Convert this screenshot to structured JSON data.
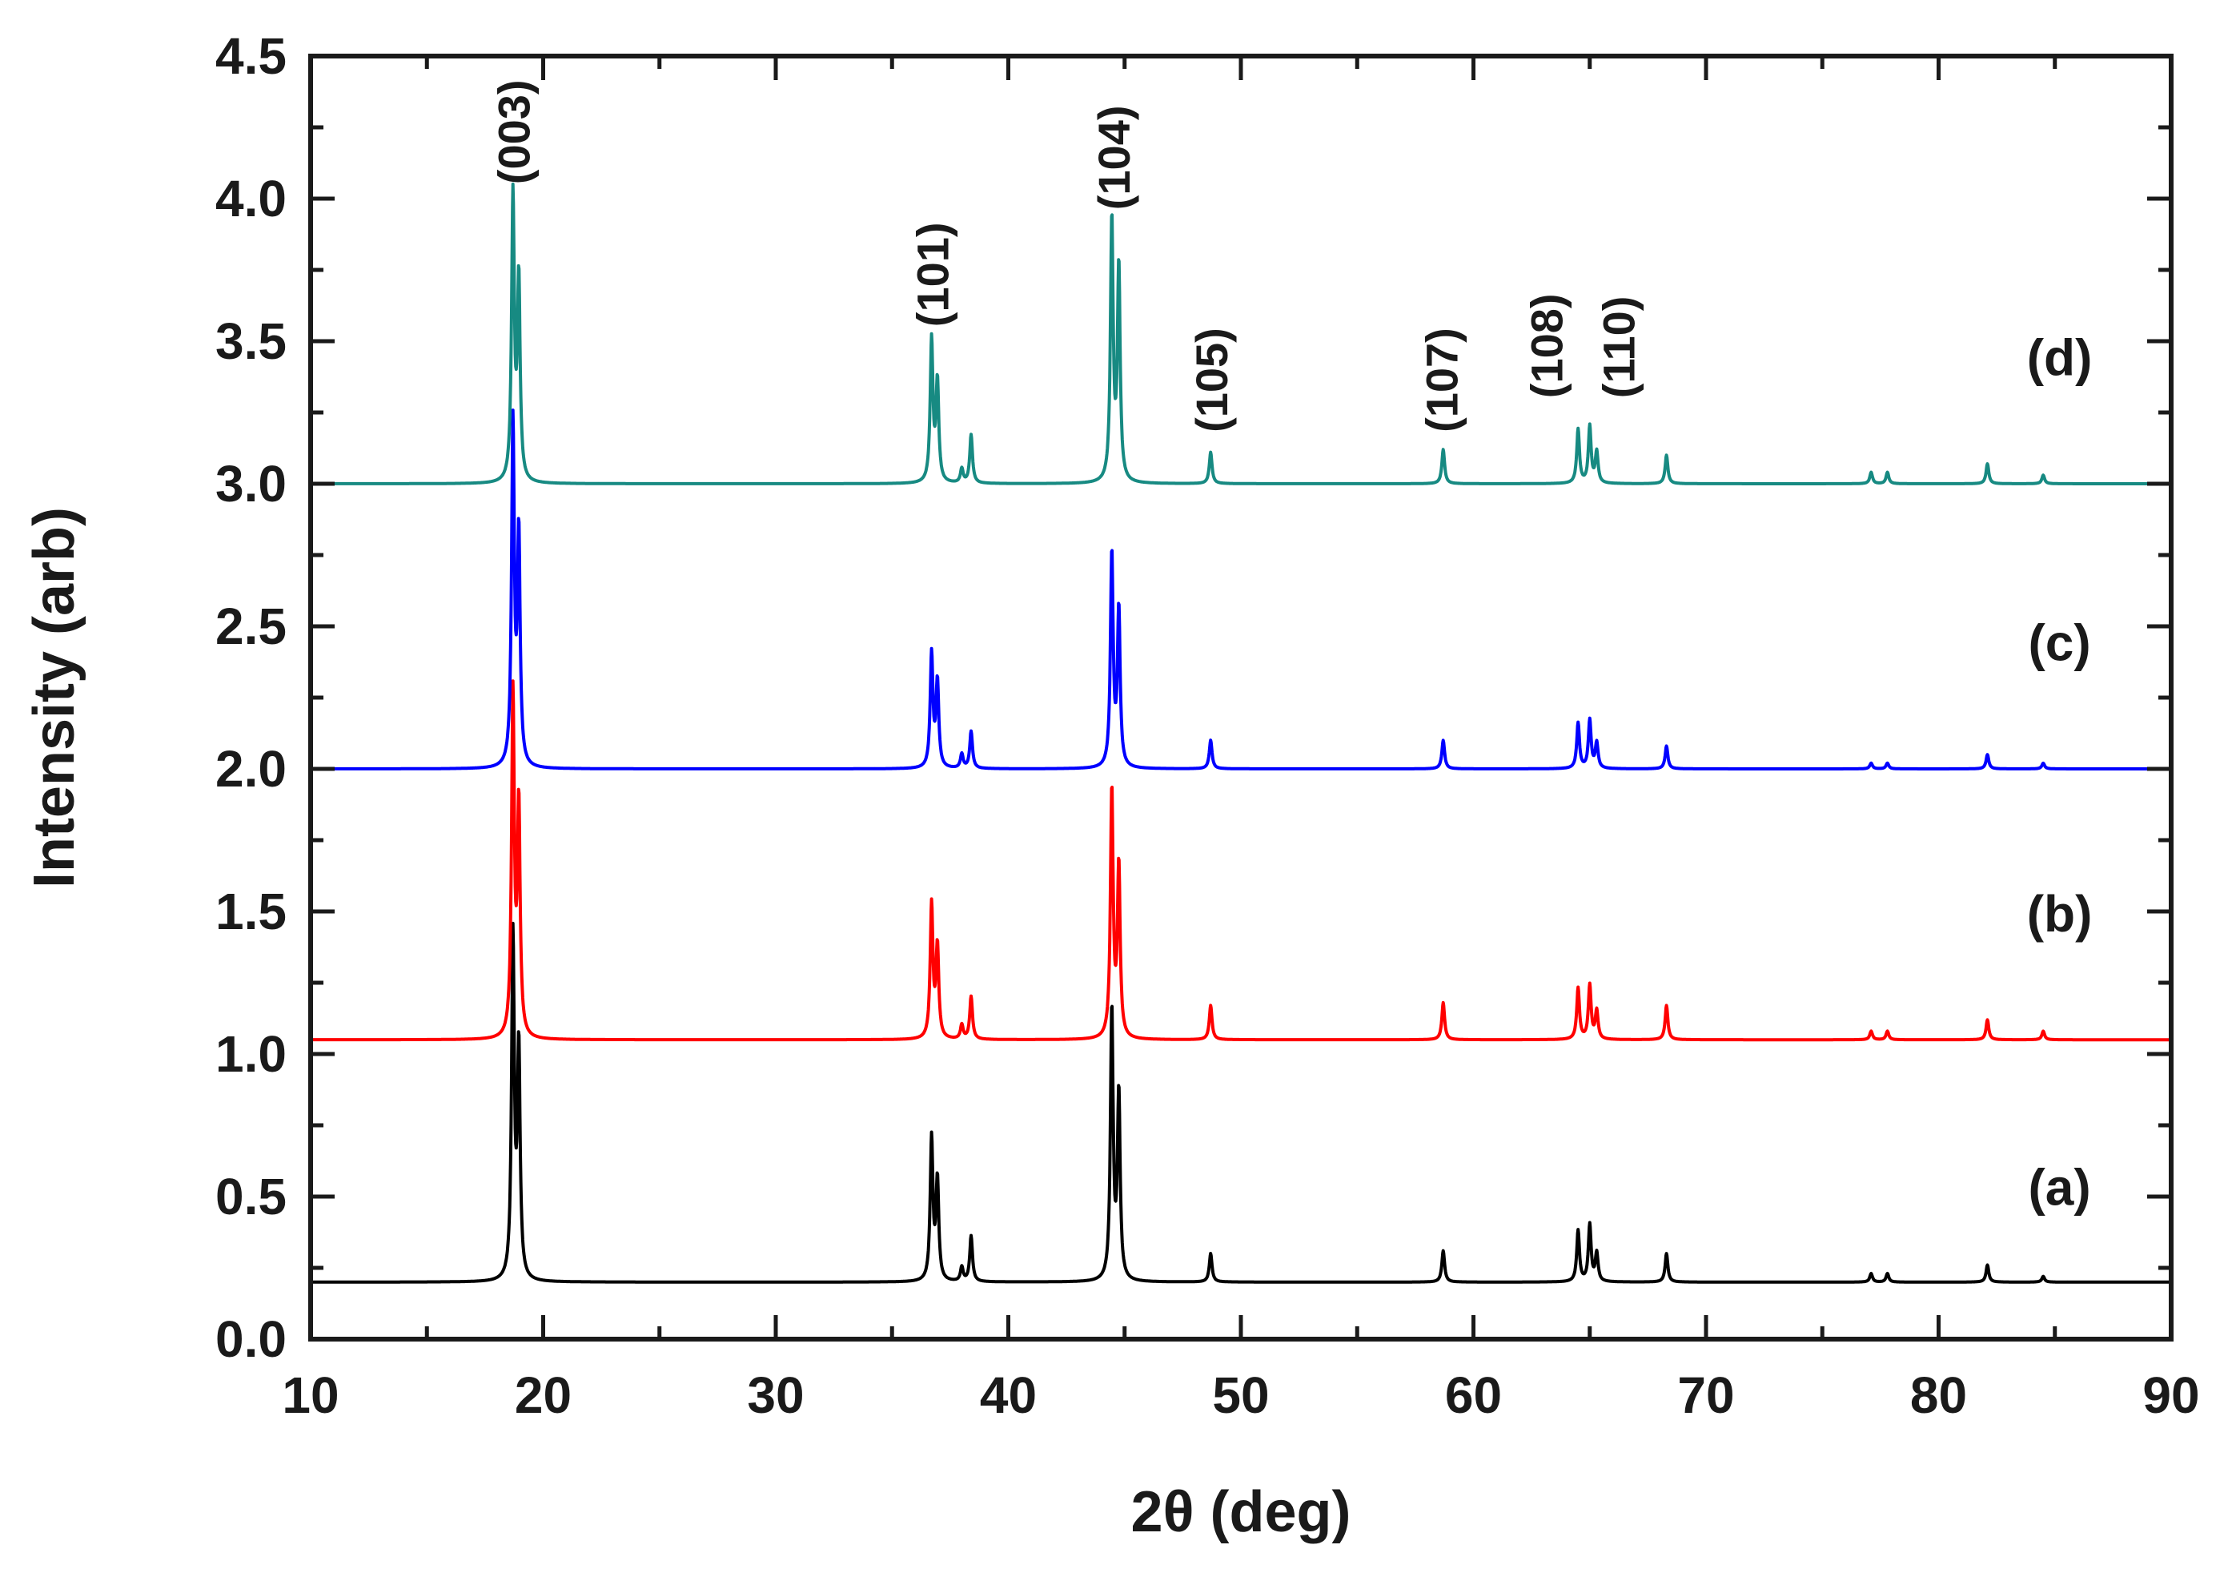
{
  "chart_data": {
    "type": "line",
    "title": "",
    "xlabel": "2θ (deg)",
    "ylabel": "Intensity (arb)",
    "xlim": [
      10,
      90
    ],
    "ylim": [
      0,
      4.5
    ],
    "x_ticks": [
      10,
      20,
      30,
      40,
      50,
      60,
      70,
      80,
      90
    ],
    "x_tick_labels": [
      "10",
      "20",
      "30",
      "40",
      "50",
      "60",
      "70",
      "80",
      "90"
    ],
    "y_ticks": [
      0,
      0.5,
      1,
      1.5,
      2,
      2.5,
      3,
      3.5,
      4,
      4.5
    ],
    "y_tick_labels": [
      "0.0",
      "0.5",
      "1.0",
      "1.5",
      "2.0",
      "2.5",
      "3.0",
      "3.5",
      "4.0",
      "4.5"
    ],
    "grid": false,
    "series": [
      {
        "name": "(a)",
        "color": "#000000",
        "baseline": 0.2,
        "label_y": 0.47,
        "peaks": [
          [
            18.7,
            1.2
          ],
          [
            18.95,
            0.8
          ],
          [
            36.7,
            0.5
          ],
          [
            36.95,
            0.35
          ],
          [
            38.0,
            0.05
          ],
          [
            38.4,
            0.16
          ],
          [
            44.45,
            0.95
          ],
          [
            44.75,
            0.65
          ],
          [
            48.7,
            0.1
          ],
          [
            58.7,
            0.11
          ],
          [
            64.5,
            0.18
          ],
          [
            65.0,
            0.2
          ],
          [
            65.3,
            0.1
          ],
          [
            68.3,
            0.1
          ],
          [
            77.1,
            0.03
          ],
          [
            77.8,
            0.03
          ],
          [
            82.1,
            0.06
          ],
          [
            84.5,
            0.02
          ]
        ]
      },
      {
        "name": "(b)",
        "color": "#ff0000",
        "baseline": 1.05,
        "label_y": 1.43,
        "peaks": [
          [
            18.7,
            1.2
          ],
          [
            18.95,
            0.8
          ],
          [
            36.7,
            0.47
          ],
          [
            36.95,
            0.32
          ],
          [
            38.0,
            0.05
          ],
          [
            38.4,
            0.15
          ],
          [
            44.45,
            0.87
          ],
          [
            44.75,
            0.6
          ],
          [
            48.7,
            0.12
          ],
          [
            58.7,
            0.13
          ],
          [
            64.5,
            0.18
          ],
          [
            65.0,
            0.19
          ],
          [
            65.3,
            0.1
          ],
          [
            68.3,
            0.12
          ],
          [
            77.1,
            0.03
          ],
          [
            77.8,
            0.03
          ],
          [
            82.1,
            0.07
          ],
          [
            84.5,
            0.03
          ]
        ]
      },
      {
        "name": "(c)",
        "color": "#0000ff",
        "baseline": 2.0,
        "label_y": 2.38,
        "peaks": [
          [
            18.7,
            1.2
          ],
          [
            18.95,
            0.8
          ],
          [
            36.7,
            0.4
          ],
          [
            36.95,
            0.3
          ],
          [
            38.0,
            0.05
          ],
          [
            38.4,
            0.13
          ],
          [
            44.45,
            0.75
          ],
          [
            44.75,
            0.55
          ],
          [
            48.7,
            0.1
          ],
          [
            58.7,
            0.1
          ],
          [
            64.5,
            0.16
          ],
          [
            65.0,
            0.17
          ],
          [
            65.3,
            0.09
          ],
          [
            68.3,
            0.08
          ],
          [
            77.1,
            0.02
          ],
          [
            77.8,
            0.02
          ],
          [
            82.1,
            0.05
          ],
          [
            84.5,
            0.02
          ]
        ]
      },
      {
        "name": "(d)",
        "color": "#178a82",
        "baseline": 3.0,
        "label_y": 3.38,
        "peaks": [
          [
            18.7,
            1.0
          ],
          [
            18.95,
            0.7
          ],
          [
            36.7,
            0.5
          ],
          [
            36.95,
            0.35
          ],
          [
            38.0,
            0.05
          ],
          [
            38.4,
            0.17
          ],
          [
            44.45,
            0.92
          ],
          [
            44.75,
            0.75
          ],
          [
            48.7,
            0.11
          ],
          [
            58.7,
            0.12
          ],
          [
            64.5,
            0.19
          ],
          [
            65.0,
            0.2
          ],
          [
            65.3,
            0.11
          ],
          [
            68.3,
            0.1
          ],
          [
            77.1,
            0.04
          ],
          [
            77.8,
            0.04
          ],
          [
            82.1,
            0.07
          ],
          [
            84.5,
            0.03
          ]
        ]
      }
    ],
    "annotations": [
      {
        "text": "(003)",
        "x": 18.8,
        "y": 4.05
      },
      {
        "text": "(101)",
        "x": 36.8,
        "y": 3.55
      },
      {
        "text": "(104)",
        "x": 44.6,
        "y": 3.96
      },
      {
        "text": "(105)",
        "x": 48.8,
        "y": 3.18
      },
      {
        "text": "(107)",
        "x": 58.7,
        "y": 3.18
      },
      {
        "text": "(108)",
        "x": 63.2,
        "y": 3.3
      },
      {
        "text": "(110)",
        "x": 66.3,
        "y": 3.3
      }
    ]
  }
}
